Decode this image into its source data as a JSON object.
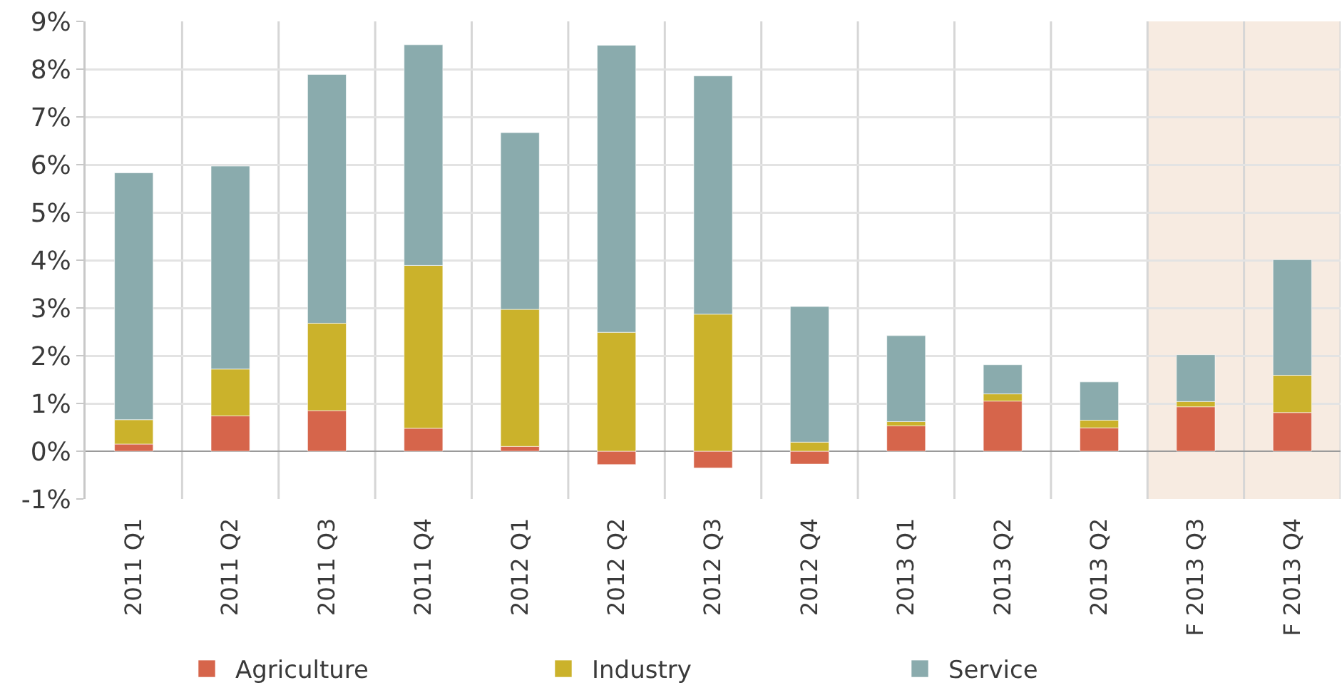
{
  "chart_data": {
    "type": "bar",
    "stacked": true,
    "categories": [
      "2011 Q1",
      "2011 Q2",
      "2011 Q3",
      "2011 Q4",
      "2012 Q1",
      "2012 Q2",
      "2012 Q3",
      "2012 Q4",
      "2013 Q1",
      "2013 Q2",
      "2013 Q2",
      "F 2013 Q3",
      "F 2013 Q4"
    ],
    "series": [
      {
        "name": "Agriculture",
        "color": "#d6654b",
        "values": [
          0.15,
          0.74,
          0.85,
          0.48,
          0.1,
          -0.28,
          -0.35,
          -0.27,
          0.53,
          1.05,
          0.49,
          0.93,
          0.81
        ]
      },
      {
        "name": "Industry",
        "color": "#cbb22b",
        "values": [
          0.51,
          0.98,
          1.83,
          3.41,
          2.87,
          2.49,
          2.87,
          0.19,
          0.09,
          0.15,
          0.16,
          0.11,
          0.78
        ]
      },
      {
        "name": "Service",
        "color": "#8aabad",
        "values": [
          5.17,
          4.25,
          5.21,
          4.62,
          3.7,
          6.01,
          4.99,
          2.84,
          1.8,
          0.61,
          0.8,
          0.98,
          2.42
        ]
      }
    ],
    "ylim": [
      -1,
      9
    ],
    "yticks": [
      {
        "value": -1,
        "label": "-1%"
      },
      {
        "value": 0,
        "label": "0%"
      },
      {
        "value": 1,
        "label": "1%"
      },
      {
        "value": 2,
        "label": "2%"
      },
      {
        "value": 3,
        "label": "3%"
      },
      {
        "value": 4,
        "label": "4%"
      },
      {
        "value": 5,
        "label": "5%"
      },
      {
        "value": 6,
        "label": "6%"
      },
      {
        "value": 7,
        "label": "7%"
      },
      {
        "value": 8,
        "label": "8%"
      },
      {
        "value": 9,
        "label": "9%"
      }
    ],
    "grid": true,
    "legend": "bottom",
    "bands": [
      {
        "axis": "x",
        "from": "F 2013 Q3",
        "to": "F 2013 Q4",
        "color": "#f5e6da"
      }
    ]
  }
}
